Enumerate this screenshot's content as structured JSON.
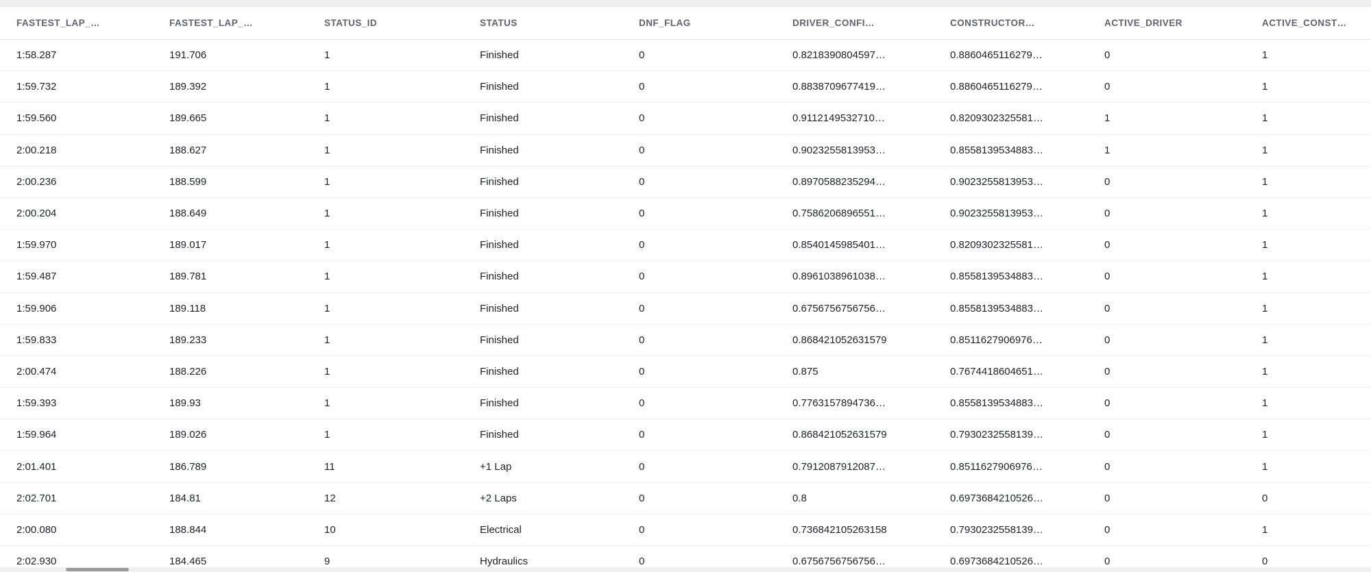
{
  "colors": {
    "background": "#ffffff",
    "header_text": "#5b6372",
    "cell_text": "#1c2127",
    "row_border": "#ececec",
    "margin_strip": "#f0f0f0",
    "scrollbar_thumb": "#9b9b9b"
  },
  "table": {
    "columns": [
      "FASTEST_LAP_…",
      "FASTEST_LAP_…",
      "STATUS_ID",
      "STATUS",
      "DNF_FLAG",
      "DRIVER_CONFI…",
      "CONSTRUCTOR…",
      "ACTIVE_DRIVER",
      "ACTIVE_CONST…"
    ],
    "rows": [
      [
        "1:58.287",
        "191.706",
        "1",
        "Finished",
        "0",
        "0.8218390804597…",
        "0.8860465116279…",
        "0",
        "1"
      ],
      [
        "1:59.732",
        "189.392",
        "1",
        "Finished",
        "0",
        "0.8838709677419…",
        "0.8860465116279…",
        "0",
        "1"
      ],
      [
        "1:59.560",
        "189.665",
        "1",
        "Finished",
        "0",
        "0.9112149532710…",
        "0.8209302325581…",
        "1",
        "1"
      ],
      [
        "2:00.218",
        "188.627",
        "1",
        "Finished",
        "0",
        "0.9023255813953…",
        "0.8558139534883…",
        "1",
        "1"
      ],
      [
        "2:00.236",
        "188.599",
        "1",
        "Finished",
        "0",
        "0.8970588235294…",
        "0.9023255813953…",
        "0",
        "1"
      ],
      [
        "2:00.204",
        "188.649",
        "1",
        "Finished",
        "0",
        "0.7586206896551…",
        "0.9023255813953…",
        "0",
        "1"
      ],
      [
        "1:59.970",
        "189.017",
        "1",
        "Finished",
        "0",
        "0.8540145985401…",
        "0.8209302325581…",
        "0",
        "1"
      ],
      [
        "1:59.487",
        "189.781",
        "1",
        "Finished",
        "0",
        "0.8961038961038…",
        "0.8558139534883…",
        "0",
        "1"
      ],
      [
        "1:59.906",
        "189.118",
        "1",
        "Finished",
        "0",
        "0.6756756756756…",
        "0.8558139534883…",
        "0",
        "1"
      ],
      [
        "1:59.833",
        "189.233",
        "1",
        "Finished",
        "0",
        "0.868421052631579",
        "0.8511627906976…",
        "0",
        "1"
      ],
      [
        "2:00.474",
        "188.226",
        "1",
        "Finished",
        "0",
        "0.875",
        "0.7674418604651…",
        "0",
        "1"
      ],
      [
        "1:59.393",
        "189.93",
        "1",
        "Finished",
        "0",
        "0.7763157894736…",
        "0.8558139534883…",
        "0",
        "1"
      ],
      [
        "1:59.964",
        "189.026",
        "1",
        "Finished",
        "0",
        "0.868421052631579",
        "0.7930232558139…",
        "0",
        "1"
      ],
      [
        "2:01.401",
        "186.789",
        "11",
        "+1 Lap",
        "0",
        "0.7912087912087…",
        "0.8511627906976…",
        "0",
        "1"
      ],
      [
        "2:02.701",
        "184.81",
        "12",
        "+2 Laps",
        "0",
        "0.8",
        "0.6973684210526…",
        "0",
        "0"
      ],
      [
        "2:00.080",
        "188.844",
        "10",
        "Electrical",
        "0",
        "0.736842105263158",
        "0.7930232558139…",
        "0",
        "1"
      ],
      [
        "2:02.930",
        "184.465",
        "9",
        "Hydraulics",
        "0",
        "0.6756756756756…",
        "0.6973684210526…",
        "0",
        "0"
      ]
    ]
  }
}
